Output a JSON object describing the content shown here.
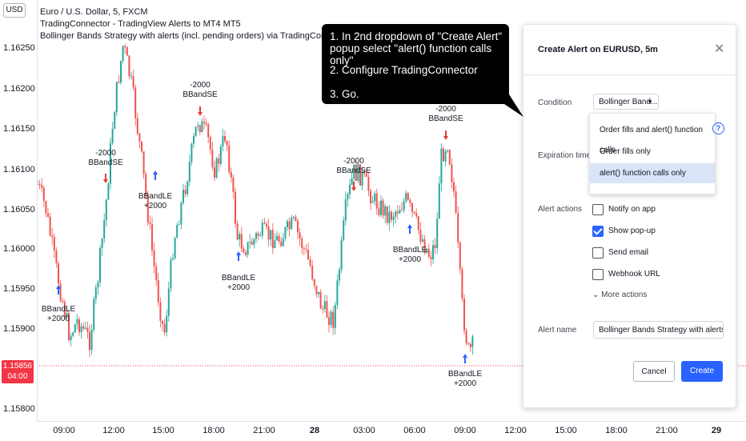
{
  "legend": {
    "line1": "Euro / U.S. Dollar, 5, FXCM",
    "line2": "TradingConnector - TradingView Alerts to MT4 MT5",
    "line3": "Bollinger Bands Strategy with alerts (incl. pending orders) via TradingConnector to Forex"
  },
  "price_axis": {
    "currency": "USD",
    "ticks": [
      "1.16250",
      "1.16200",
      "1.16150",
      "1.16100",
      "1.16050",
      "1.16000",
      "1.15950",
      "1.15900",
      "1.15800"
    ],
    "current_price": "1.15856",
    "countdown": "04:00"
  },
  "time_axis": {
    "ticks": [
      "09:00",
      "12:00",
      "15:00",
      "18:00",
      "21:00",
      "28",
      "03:00",
      "06:00",
      "09:00",
      "12:00",
      "15:00",
      "18:00",
      "21:00",
      "29"
    ]
  },
  "signals": [
    {
      "type": "long",
      "line1": "BBandLE",
      "line2": "+2000"
    },
    {
      "type": "short",
      "line1": "-2000",
      "line2": "BBandSE"
    },
    {
      "type": "long",
      "line1": "BBandLE",
      "line2": "+2000"
    },
    {
      "type": "short",
      "line1": "-2000",
      "line2": "BBandSE"
    },
    {
      "type": "long",
      "line1": "BBandLE",
      "line2": "+2000"
    },
    {
      "type": "short",
      "line1": "-2000",
      "line2": "BBandSE"
    },
    {
      "type": "long",
      "line1": "BBandLE",
      "line2": "+2000"
    },
    {
      "type": "short",
      "line1": "-2000",
      "line2": "BBandSE"
    },
    {
      "type": "long",
      "line1": "BBandLE",
      "line2": "+2000"
    }
  ],
  "callout": {
    "step1_line1": "1. In 2nd dropdown of \"Create Alert\"",
    "step1_line2": "popup select \"alert() function calls only\"",
    "step2": "2. Configure TradingConnector",
    "step3": "3. Go."
  },
  "dialog": {
    "title": "Create Alert on EURUSD, 5m",
    "condition_label": "Condition",
    "condition_value": "Bollinger Band...",
    "condition_options": [
      "Order fills and alert() function calls",
      "Order fills only",
      "alert() function calls only"
    ],
    "selected_option": "alert() function calls only",
    "expiration_label": "Expiration time",
    "alert_actions_label": "Alert actions",
    "actions": [
      {
        "label": "Notify on app",
        "checked": false
      },
      {
        "label": "Show pop-up",
        "checked": true
      },
      {
        "label": "Send email",
        "checked": false
      },
      {
        "label": "Webhook URL",
        "checked": false
      }
    ],
    "more_actions": "More actions",
    "alert_name_label": "Alert name",
    "alert_name_value": "Bollinger Bands Strategy with alerts via Tr...",
    "cancel_label": "Cancel",
    "create_label": "Create"
  },
  "colors": {
    "up": "#26a69a",
    "down": "#ef5350",
    "accent": "#2962ff",
    "callout_bg": "#000000",
    "price_badge": "#f23645"
  }
}
